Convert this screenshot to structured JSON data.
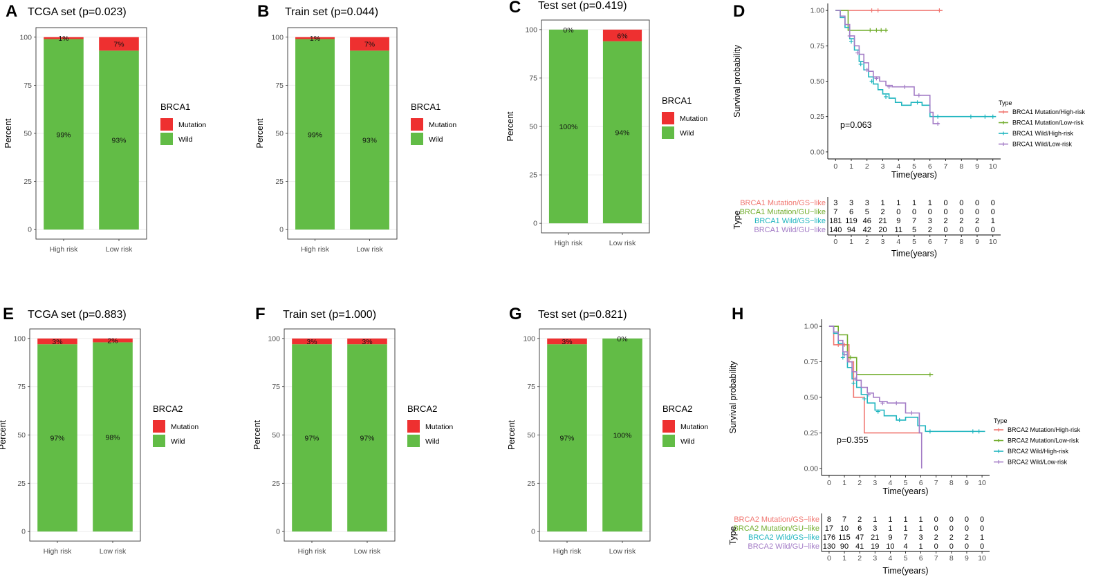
{
  "colors": {
    "mutation": "#ee3030",
    "wild": "#62bc46",
    "grid": "#ebebeb",
    "km": [
      "#f07670",
      "#72ad2d",
      "#1fb5bf",
      "#a37cc6"
    ]
  },
  "chart_data": [
    {
      "panel": "A",
      "type": "bar",
      "stacked": true,
      "title": "TCGA set (p=0.023)",
      "xlabel": "",
      "ylabel": "Percent",
      "ylim": [
        0,
        100
      ],
      "yticks": [
        0,
        25,
        50,
        75,
        100
      ],
      "categories": [
        "High risk",
        "Low risk"
      ],
      "series": [
        {
          "name": "Wild",
          "values": [
            99,
            93
          ],
          "labels": [
            "99%",
            "93%"
          ]
        },
        {
          "name": "Mutation",
          "values": [
            1,
            7
          ],
          "labels": [
            "1%",
            "7%"
          ]
        }
      ],
      "legend": {
        "title": "BRCA1",
        "position": "right",
        "items": [
          "Mutation",
          "Wild"
        ]
      }
    },
    {
      "panel": "B",
      "type": "bar",
      "stacked": true,
      "title": "Train set (p=0.044)",
      "xlabel": "",
      "ylabel": "Percent",
      "ylim": [
        0,
        100
      ],
      "yticks": [
        0,
        25,
        50,
        75,
        100
      ],
      "categories": [
        "High risk",
        "Low risk"
      ],
      "series": [
        {
          "name": "Wild",
          "values": [
            99,
            93
          ],
          "labels": [
            "99%",
            "93%"
          ]
        },
        {
          "name": "Mutation",
          "values": [
            1,
            7
          ],
          "labels": [
            "1%",
            "7%"
          ]
        }
      ],
      "legend": {
        "title": "BRCA1",
        "position": "right",
        "items": [
          "Mutation",
          "Wild"
        ]
      }
    },
    {
      "panel": "C",
      "type": "bar",
      "stacked": true,
      "title": "Test set (p=0.419)",
      "xlabel": "",
      "ylabel": "Percent",
      "ylim": [
        0,
        100
      ],
      "yticks": [
        0,
        25,
        50,
        75,
        100
      ],
      "categories": [
        "High risk",
        "Low risk"
      ],
      "series": [
        {
          "name": "Wild",
          "values": [
            100,
            94
          ],
          "labels": [
            "100%",
            "94%"
          ]
        },
        {
          "name": "Mutation",
          "values": [
            0,
            6
          ],
          "labels": [
            "0%",
            "6%"
          ]
        }
      ],
      "legend": {
        "title": "BRCA1",
        "position": "right",
        "items": [
          "Mutation",
          "Wild"
        ]
      }
    },
    {
      "panel": "D",
      "type": "line",
      "subtype": "kaplan-meier",
      "xlabel": "Time(years)",
      "ylabel": "Survival probability",
      "xlim": [
        0,
        10
      ],
      "ylim": [
        0,
        1
      ],
      "xticks": [
        0,
        1,
        2,
        3,
        4,
        5,
        6,
        7,
        8,
        9,
        10
      ],
      "yticks": [
        "0.00",
        "0.25",
        "0.50",
        "0.75",
        "1.00"
      ],
      "p_value": "p=0.063",
      "legend": {
        "title": "Type",
        "position": "right"
      },
      "series": [
        {
          "name": "BRCA1 Mutation/High-risk",
          "x": [
            0,
            6.8
          ],
          "y": [
            1.0,
            1.0
          ],
          "censor": [
            [
              2.3,
              1.0
            ],
            [
              2.7,
              1.0
            ],
            [
              6.6,
              1.0
            ]
          ]
        },
        {
          "name": "BRCA1 Mutation/Low-risk",
          "x": [
            0,
            0.8,
            3.3
          ],
          "y": [
            1.0,
            0.86,
            0.86
          ],
          "censor": [
            [
              2.2,
              0.86
            ],
            [
              2.6,
              0.86
            ],
            [
              2.9,
              0.86
            ],
            [
              3.2,
              0.86
            ]
          ]
        },
        {
          "name": "BRCA1 Wild/High-risk",
          "x": [
            0,
            0.3,
            0.6,
            0.9,
            1.2,
            1.5,
            1.8,
            2.1,
            2.4,
            2.7,
            3.0,
            3.4,
            3.8,
            4.2,
            4.8,
            5.5,
            6.0,
            7.0,
            10.2
          ],
          "y": [
            1.0,
            0.95,
            0.88,
            0.8,
            0.72,
            0.64,
            0.58,
            0.53,
            0.48,
            0.44,
            0.41,
            0.38,
            0.35,
            0.33,
            0.35,
            0.33,
            0.25,
            0.25,
            0.25
          ],
          "censor": [
            [
              1.0,
              0.78
            ],
            [
              1.6,
              0.62
            ],
            [
              2.3,
              0.5
            ],
            [
              3.2,
              0.39
            ],
            [
              5.2,
              0.35
            ],
            [
              6.5,
              0.25
            ],
            [
              8.6,
              0.25
            ],
            [
              9.5,
              0.25
            ],
            [
              10.0,
              0.25
            ]
          ]
        },
        {
          "name": "BRCA1 Wild/Low-risk",
          "x": [
            0,
            0.3,
            0.6,
            0.9,
            1.2,
            1.5,
            1.8,
            2.1,
            2.4,
            2.8,
            3.2,
            3.6,
            4.2,
            5.0,
            6.0,
            6.2,
            6.6
          ],
          "y": [
            1.0,
            0.96,
            0.9,
            0.82,
            0.75,
            0.69,
            0.63,
            0.57,
            0.53,
            0.5,
            0.47,
            0.46,
            0.46,
            0.4,
            0.28,
            0.2,
            0.2
          ],
          "censor": [
            [
              0.9,
              0.82
            ],
            [
              1.4,
              0.7
            ],
            [
              2.0,
              0.58
            ],
            [
              2.6,
              0.52
            ],
            [
              3.4,
              0.46
            ],
            [
              4.4,
              0.46
            ],
            [
              5.3,
              0.4
            ],
            [
              6.5,
              0.2
            ]
          ]
        }
      ],
      "risk_table": {
        "title": "Type",
        "xlabel": "Time(years)",
        "rows": [
          {
            "label": "BRCA1 Mutation/GS−like",
            "values": [
              "3",
              "3",
              "3",
              "1",
              "1",
              "1",
              "1",
              "0",
              "0",
              "0",
              "0"
            ]
          },
          {
            "label": "BRCA1 Mutation/GU−like",
            "values": [
              "7",
              "6",
              "5",
              "2",
              "0",
              "0",
              "0",
              "0",
              "0",
              "0",
              "0"
            ]
          },
          {
            "label": "BRCA1 Wild/GS−like",
            "values": [
              "181",
              "119",
              "46",
              "21",
              "9",
              "7",
              "3",
              "2",
              "2",
              "2",
              "1"
            ]
          },
          {
            "label": "BRCA1 Wild/GU−like",
            "values": [
              "140",
              "94",
              "42",
              "20",
              "11",
              "5",
              "2",
              "0",
              "0",
              "0",
              "0"
            ]
          }
        ]
      }
    },
    {
      "panel": "E",
      "type": "bar",
      "stacked": true,
      "title": "TCGA set (p=0.883)",
      "xlabel": "",
      "ylabel": "Percent",
      "ylim": [
        0,
        100
      ],
      "yticks": [
        0,
        25,
        50,
        75,
        100
      ],
      "categories": [
        "High risk",
        "Low risk"
      ],
      "series": [
        {
          "name": "Wild",
          "values": [
            97,
            98
          ],
          "labels": [
            "97%",
            "98%"
          ]
        },
        {
          "name": "Mutation",
          "values": [
            3,
            2
          ],
          "labels": [
            "3%",
            "2%"
          ]
        }
      ],
      "legend": {
        "title": "BRCA2",
        "position": "right",
        "items": [
          "Mutation",
          "Wild"
        ]
      }
    },
    {
      "panel": "F",
      "type": "bar",
      "stacked": true,
      "title": "Train set (p=1.000)",
      "xlabel": "",
      "ylabel": "Percent",
      "ylim": [
        0,
        100
      ],
      "yticks": [
        0,
        25,
        50,
        75,
        100
      ],
      "categories": [
        "High risk",
        "Low risk"
      ],
      "series": [
        {
          "name": "Wild",
          "values": [
            97,
            97
          ],
          "labels": [
            "97%",
            "97%"
          ]
        },
        {
          "name": "Mutation",
          "values": [
            3,
            3
          ],
          "labels": [
            "3%",
            "3%"
          ]
        }
      ],
      "legend": {
        "title": "BRCA2",
        "position": "right",
        "items": [
          "Mutation",
          "Wild"
        ]
      }
    },
    {
      "panel": "G",
      "type": "bar",
      "stacked": true,
      "title": "Test set (p=0.821)",
      "xlabel": "",
      "ylabel": "Percent",
      "ylim": [
        0,
        100
      ],
      "yticks": [
        0,
        25,
        50,
        75,
        100
      ],
      "categories": [
        "High risk",
        "Low risk"
      ],
      "series": [
        {
          "name": "Wild",
          "values": [
            97,
            100
          ],
          "labels": [
            "97%",
            "100%"
          ]
        },
        {
          "name": "Mutation",
          "values": [
            3,
            0
          ],
          "labels": [
            "3%",
            "0%"
          ]
        }
      ],
      "legend": {
        "title": "BRCA2",
        "position": "right",
        "items": [
          "Mutation",
          "Wild"
        ]
      }
    },
    {
      "panel": "H",
      "type": "line",
      "subtype": "kaplan-meier",
      "xlabel": "Time(years)",
      "ylabel": "Survival probability",
      "xlim": [
        0,
        10
      ],
      "ylim": [
        0,
        1
      ],
      "xticks": [
        0,
        1,
        2,
        3,
        4,
        5,
        6,
        7,
        8,
        9,
        10
      ],
      "yticks": [
        "0.00",
        "0.25",
        "0.50",
        "0.75",
        "1.00"
      ],
      "p_value": "p=0.355",
      "legend": {
        "title": "Type",
        "position": "right"
      },
      "series": [
        {
          "name": "BRCA2 Mutation/High-risk",
          "x": [
            0,
            0.3,
            0.9,
            1.3,
            1.6,
            2.3,
            6.1
          ],
          "y": [
            1.0,
            0.87,
            0.87,
            0.75,
            0.5,
            0.25,
            0.25
          ],
          "censor": [
            [
              0.6,
              0.87
            ],
            [
              1.0,
              0.87
            ]
          ]
        },
        {
          "name": "BRCA2 Mutation/Low-risk",
          "x": [
            0,
            0.6,
            1.2,
            1.8,
            6.8
          ],
          "y": [
            1.0,
            0.94,
            0.78,
            0.66,
            0.66
          ],
          "censor": [
            [
              1.4,
              0.78
            ],
            [
              6.6,
              0.66
            ]
          ]
        },
        {
          "name": "BRCA2 Wild/High-risk",
          "x": [
            0,
            0.3,
            0.6,
            0.9,
            1.2,
            1.5,
            1.8,
            2.1,
            2.5,
            3.0,
            3.6,
            4.4,
            5.0,
            5.8,
            6.3,
            10.2
          ],
          "y": [
            1.0,
            0.95,
            0.88,
            0.8,
            0.71,
            0.63,
            0.57,
            0.52,
            0.46,
            0.41,
            0.37,
            0.34,
            0.36,
            0.3,
            0.26,
            0.26
          ],
          "censor": [
            [
              0.9,
              0.78
            ],
            [
              1.6,
              0.6
            ],
            [
              2.3,
              0.49
            ],
            [
              3.2,
              0.4
            ],
            [
              4.6,
              0.34
            ],
            [
              6.6,
              0.26
            ],
            [
              9.4,
              0.26
            ],
            [
              9.8,
              0.26
            ]
          ]
        },
        {
          "name": "BRCA2 Wild/Low-risk",
          "x": [
            0,
            0.3,
            0.6,
            0.9,
            1.2,
            1.5,
            1.8,
            2.1,
            2.5,
            2.9,
            3.3,
            3.8,
            4.4,
            5.0,
            5.9,
            6.05
          ],
          "y": [
            1.0,
            0.96,
            0.9,
            0.82,
            0.75,
            0.68,
            0.62,
            0.57,
            0.53,
            0.5,
            0.47,
            0.46,
            0.46,
            0.39,
            0.25,
            0.0
          ],
          "censor": [
            [
              1.0,
              0.8
            ],
            [
              1.7,
              0.63
            ],
            [
              2.6,
              0.52
            ],
            [
              3.5,
              0.46
            ],
            [
              4.4,
              0.46
            ],
            [
              5.4,
              0.39
            ]
          ]
        }
      ],
      "risk_table": {
        "title": "Type",
        "xlabel": "Time(years)",
        "rows": [
          {
            "label": "BRCA2 Mutation/GS−like",
            "values": [
              "8",
              "7",
              "2",
              "1",
              "1",
              "1",
              "1",
              "0",
              "0",
              "0",
              "0"
            ]
          },
          {
            "label": "BRCA2 Mutation/GU−like",
            "values": [
              "17",
              "10",
              "6",
              "3",
              "1",
              "1",
              "1",
              "0",
              "0",
              "0",
              "0"
            ]
          },
          {
            "label": "BRCA2 Wild/GS−like",
            "values": [
              "176",
              "115",
              "47",
              "21",
              "9",
              "7",
              "3",
              "2",
              "2",
              "2",
              "1"
            ]
          },
          {
            "label": "BRCA2 Wild/GU−like",
            "values": [
              "130",
              "90",
              "41",
              "19",
              "10",
              "4",
              "1",
              "0",
              "0",
              "0",
              "0"
            ]
          }
        ]
      }
    }
  ]
}
